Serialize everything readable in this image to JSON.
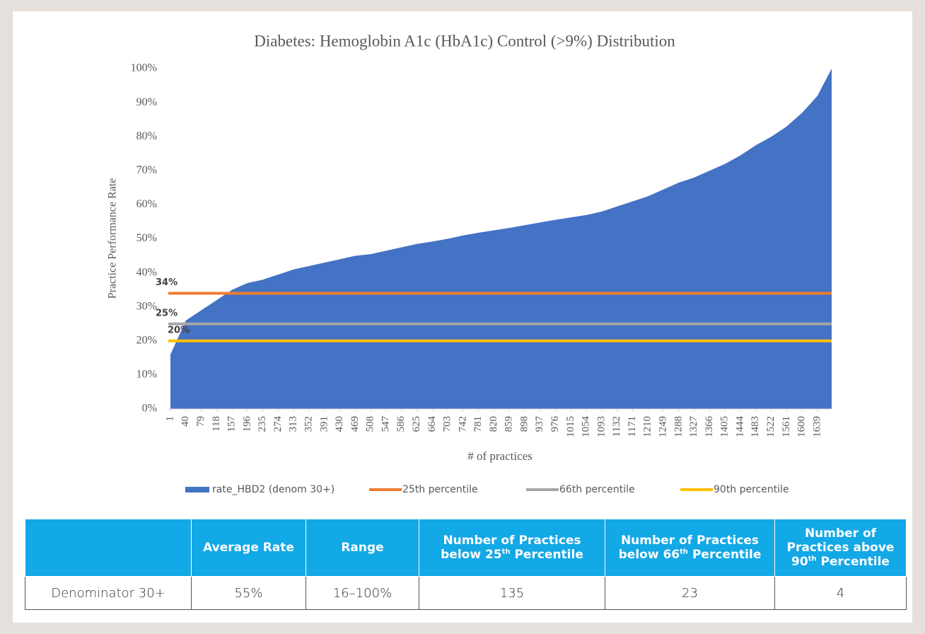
{
  "chart_data": {
    "type": "area",
    "title": "Diabetes: Hemoglobin A1c (HbA1c) Control (>9%) Distribution",
    "y_label": "Practice Performance Rate",
    "x_label": "# of practices",
    "x": [
      1,
      40,
      79,
      118,
      157,
      196,
      235,
      274,
      313,
      352,
      391,
      430,
      469,
      508,
      547,
      586,
      625,
      664,
      703,
      742,
      781,
      820,
      859,
      898,
      937,
      976,
      1015,
      1054,
      1093,
      1132,
      1171,
      1210,
      1249,
      1288,
      1327,
      1366,
      1405,
      1444,
      1483,
      1522,
      1561,
      1600,
      1639,
      1675
    ],
    "series": [
      {
        "name": "rate_HBD2 (denom 30+)",
        "color": "#4472c4",
        "values": [
          16,
          26,
          29,
          32,
          35,
          37,
          38,
          39.5,
          41,
          42,
          43,
          44,
          45,
          45.5,
          46.5,
          47.5,
          48.5,
          49.2,
          50,
          51,
          51.8,
          52.5,
          53.2,
          54,
          54.8,
          55.6,
          56.3,
          57,
          58,
          59.5,
          61,
          62.5,
          64.5,
          66.5,
          68,
          70,
          72,
          74.5,
          77.5,
          80,
          83,
          87,
          92,
          100
        ]
      }
    ],
    "reference_lines": [
      {
        "name": "25th percentile",
        "value": 34,
        "value_label": "34%",
        "color": "#ed7d31"
      },
      {
        "name": "66th percentile",
        "value": 25,
        "value_label": "25%",
        "color": "#a5a5a5"
      },
      {
        "name": "90th percentile",
        "value": 20,
        "value_label": "20%",
        "color": "#ffc000"
      }
    ],
    "xlim": [
      1,
      1675
    ],
    "xticks": [
      1,
      40,
      79,
      118,
      157,
      196,
      235,
      274,
      313,
      352,
      391,
      430,
      469,
      508,
      547,
      586,
      625,
      664,
      703,
      742,
      781,
      820,
      859,
      898,
      937,
      976,
      1015,
      1054,
      1093,
      1132,
      1171,
      1210,
      1249,
      1288,
      1327,
      1366,
      1405,
      1444,
      1483,
      1522,
      1561,
      1600,
      1639
    ],
    "ylim": [
      0,
      100
    ],
    "yticks": [
      {
        "value": 0,
        "label": "0%"
      },
      {
        "value": 10,
        "label": "10%"
      },
      {
        "value": 20,
        "label": "20%"
      },
      {
        "value": 30,
        "label": "30%"
      },
      {
        "value": 40,
        "label": "40%"
      },
      {
        "value": 50,
        "label": "50%"
      },
      {
        "value": 60,
        "label": "60%"
      },
      {
        "value": 70,
        "label": "70%"
      },
      {
        "value": 80,
        "label": "80%"
      },
      {
        "value": 90,
        "label": "90%"
      },
      {
        "value": 100,
        "label": "100%"
      }
    ],
    "legend": "bottom"
  },
  "table": {
    "header": [
      {
        "text": "Average Rate"
      },
      {
        "text": "Range"
      },
      {
        "text": "Number of Practices below 25",
        "sup": "th",
        "rest": " Percentile"
      },
      {
        "text": "Number of Practices below 66",
        "sup": "th",
        "rest": " Percentile"
      },
      {
        "text": "Number of Practices above 90",
        "sup": "th",
        "rest": " Percentile"
      }
    ],
    "rows": [
      [
        "Denominator 30+",
        "55%",
        "16–100%",
        "135",
        "23",
        "4"
      ]
    ]
  }
}
